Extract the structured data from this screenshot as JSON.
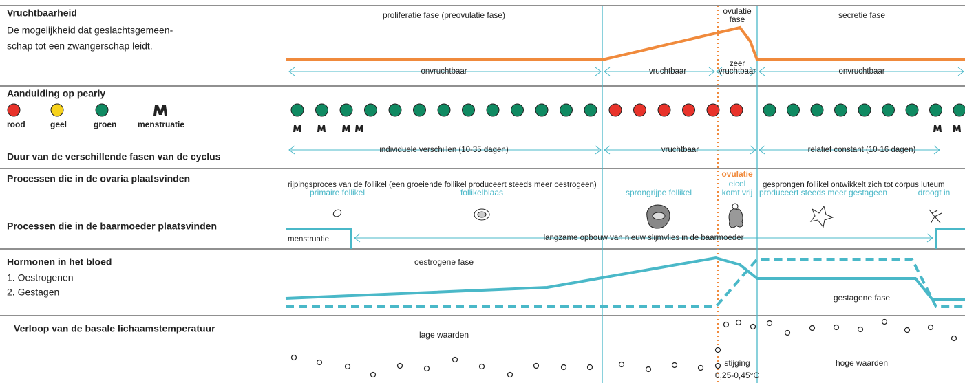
{
  "fertility": {
    "title": "Vruchtbaarheid",
    "description": [
      "De mogelijkheid dat geslachtsgemeen-",
      "schap tot een zwangerschap leidt."
    ],
    "phases": {
      "proliferation": "proliferatie fase (preovulatie fase)",
      "ovulation": [
        "ovulatie",
        "fase"
      ],
      "secretion": "secretie fase"
    },
    "periods": {
      "infertile_1": "onvruchtbaar",
      "fertile": "vruchtbaar",
      "very_fertile": [
        "zeer",
        "vruchtbaar"
      ],
      "infertile_2": "onvruchtbaar"
    }
  },
  "pearly": {
    "title": "Aanduiding op pearly",
    "legend": [
      "rood",
      "geel",
      "groen",
      "menstruatie"
    ]
  },
  "duration": {
    "title": "Duur van de verschillende fasen van de cyclus",
    "periods": [
      "individuele verschillen (10-35 dagen)",
      "vruchtbaar",
      "relatief constant (10-16 dagen)"
    ]
  },
  "ovaries": {
    "title": "Processen die in de ovaria plaatsvinden",
    "maturation": "rijpingsproces van de follikel (een groeiende follikel produceert steeds meer oestrogeen)",
    "ovulation": "ovulatie",
    "egg_release": [
      "eicel",
      "komt vrij"
    ],
    "corpus_luteum": "gesprongen follikel ontwikkelt zich tot corpus luteum",
    "stages": [
      "primaire follikel",
      "follikelblaas",
      "sprongrijpe follikel",
      "produceert steeds meer gestageen",
      "droogt in"
    ]
  },
  "uterus": {
    "title": "Processen die in de baarmoeder plaatsvinden",
    "menstruation": "menstruatie",
    "buildup": "langzame opbouw van nieuw slijmvlies in de baarmoeder"
  },
  "hormones": {
    "title": "Hormonen in het bloed",
    "items": [
      "1. Oestrogenen",
      "2. Gestagen"
    ],
    "estrogen_phase": "oestrogene fase",
    "gestagen_phase": "gestagene fase"
  },
  "temperature": {
    "title": "Verloop van de basale lichaamstemperatuur",
    "low": "lage waarden",
    "rise": [
      "stijging",
      "0,25-0,45°C"
    ],
    "high": "hoge waarden"
  }
}
